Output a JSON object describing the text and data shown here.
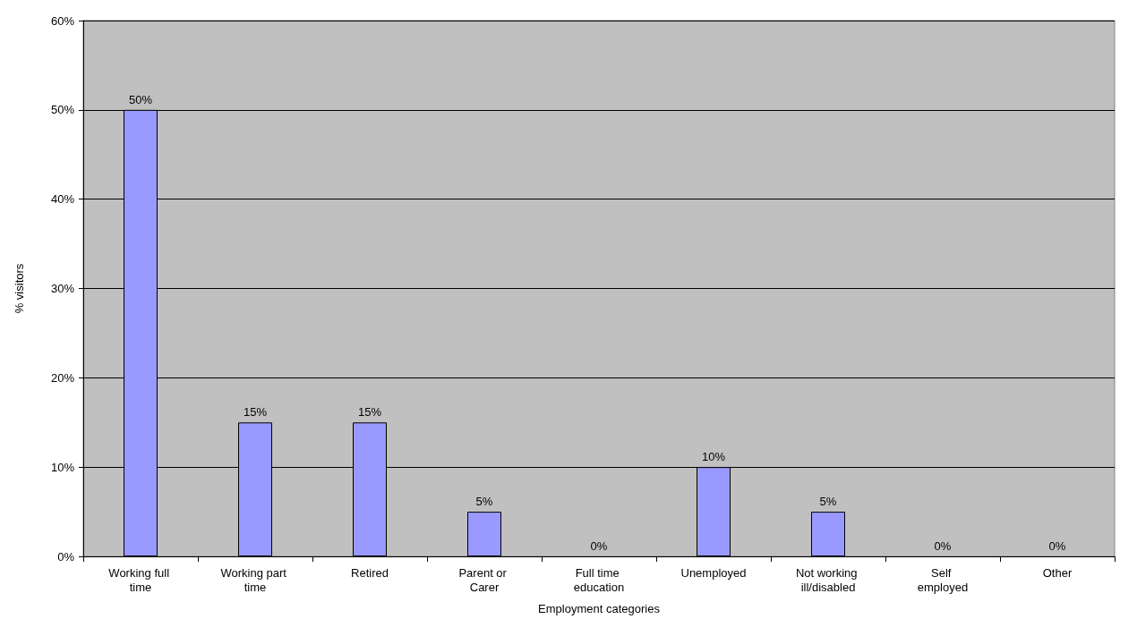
{
  "chart_data": {
    "type": "bar",
    "xlabel": "Employment categories",
    "ylabel": "% visitors",
    "categories": [
      "Working full time",
      "Working part time",
      "Retired",
      "Parent or Carer",
      "Full time education",
      "Unemployed",
      "Not working ill/disabled",
      "Self employed",
      "Other"
    ],
    "values": [
      50,
      15,
      15,
      5,
      0,
      10,
      5,
      0,
      0
    ],
    "value_labels": [
      "50%",
      "15%",
      "15%",
      "5%",
      "0%",
      "10%",
      "5%",
      "0%",
      "0%"
    ],
    "color": "#9999ff",
    "ylim": [
      0,
      60
    ],
    "yticks": [
      {
        "value": 0,
        "label": "0%"
      },
      {
        "value": 10,
        "label": "10%"
      },
      {
        "value": 20,
        "label": "20%"
      },
      {
        "value": 30,
        "label": "30%"
      },
      {
        "value": 40,
        "label": "40%"
      },
      {
        "value": 50,
        "label": "50%"
      },
      {
        "value": 60,
        "label": "60%"
      }
    ],
    "grid": "y"
  }
}
